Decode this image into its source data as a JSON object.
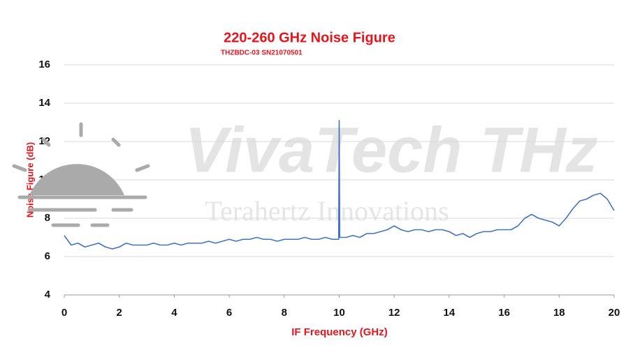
{
  "chart_data": {
    "type": "line",
    "title": "220-260 GHz Noise Figure",
    "subtitle": "THZBDC-03 SN21070501",
    "xlabel": "IF Frequency (GHz)",
    "ylabel": "Noise Figure (dB)",
    "watermark": "VivaTech THz",
    "watermark_subtitle": "Terahertz Innovations",
    "x": [
      0,
      0.25,
      0.5,
      0.75,
      1,
      1.25,
      1.5,
      1.75,
      2,
      2.25,
      2.5,
      2.75,
      3,
      3.25,
      3.5,
      3.75,
      4,
      4.25,
      4.5,
      4.75,
      5,
      5.25,
      5.5,
      5.75,
      6,
      6.25,
      6.5,
      6.75,
      7,
      7.25,
      7.5,
      7.75,
      8,
      8.25,
      8.5,
      8.75,
      9,
      9.25,
      9.5,
      9.75,
      9.98,
      10,
      10.02,
      10.25,
      10.5,
      10.75,
      11,
      11.25,
      11.5,
      11.75,
      12,
      12.25,
      12.5,
      12.75,
      13,
      13.25,
      13.5,
      13.75,
      14,
      14.25,
      14.5,
      14.75,
      15,
      15.25,
      15.5,
      15.75,
      16,
      16.25,
      16.5,
      16.75,
      17,
      17.25,
      17.5,
      17.75,
      18,
      18.25,
      18.5,
      18.75,
      19,
      19.25,
      19.5,
      19.75,
      20
    ],
    "series": [
      {
        "name": "Noise Figure",
        "color": "#4472c4",
        "values": [
          7.1,
          6.6,
          6.7,
          6.5,
          6.6,
          6.7,
          6.5,
          6.4,
          6.5,
          6.7,
          6.6,
          6.6,
          6.6,
          6.7,
          6.6,
          6.6,
          6.7,
          6.6,
          6.7,
          6.7,
          6.7,
          6.8,
          6.7,
          6.8,
          6.9,
          6.8,
          6.9,
          6.9,
          7.0,
          6.9,
          6.9,
          6.8,
          6.9,
          6.9,
          6.9,
          7.0,
          6.9,
          6.9,
          7.0,
          6.9,
          6.9,
          13.1,
          7.0,
          7.0,
          7.1,
          7.0,
          7.2,
          7.2,
          7.3,
          7.4,
          7.6,
          7.4,
          7.3,
          7.4,
          7.4,
          7.3,
          7.4,
          7.4,
          7.3,
          7.1,
          7.2,
          7.0,
          7.2,
          7.3,
          7.3,
          7.4,
          7.4,
          7.4,
          7.6,
          8.0,
          8.2,
          8.0,
          7.9,
          7.8,
          7.6,
          8.0,
          8.5,
          8.9,
          9.0,
          9.2,
          9.3,
          9.0,
          8.4
        ]
      }
    ],
    "xlim": [
      0,
      20
    ],
    "ylim": [
      4,
      16
    ],
    "xticks": [
      0,
      2,
      4,
      6,
      8,
      10,
      12,
      14,
      16,
      18,
      20
    ],
    "yticks": [
      4,
      6,
      8,
      10,
      12,
      14,
      16
    ],
    "grid": true
  }
}
